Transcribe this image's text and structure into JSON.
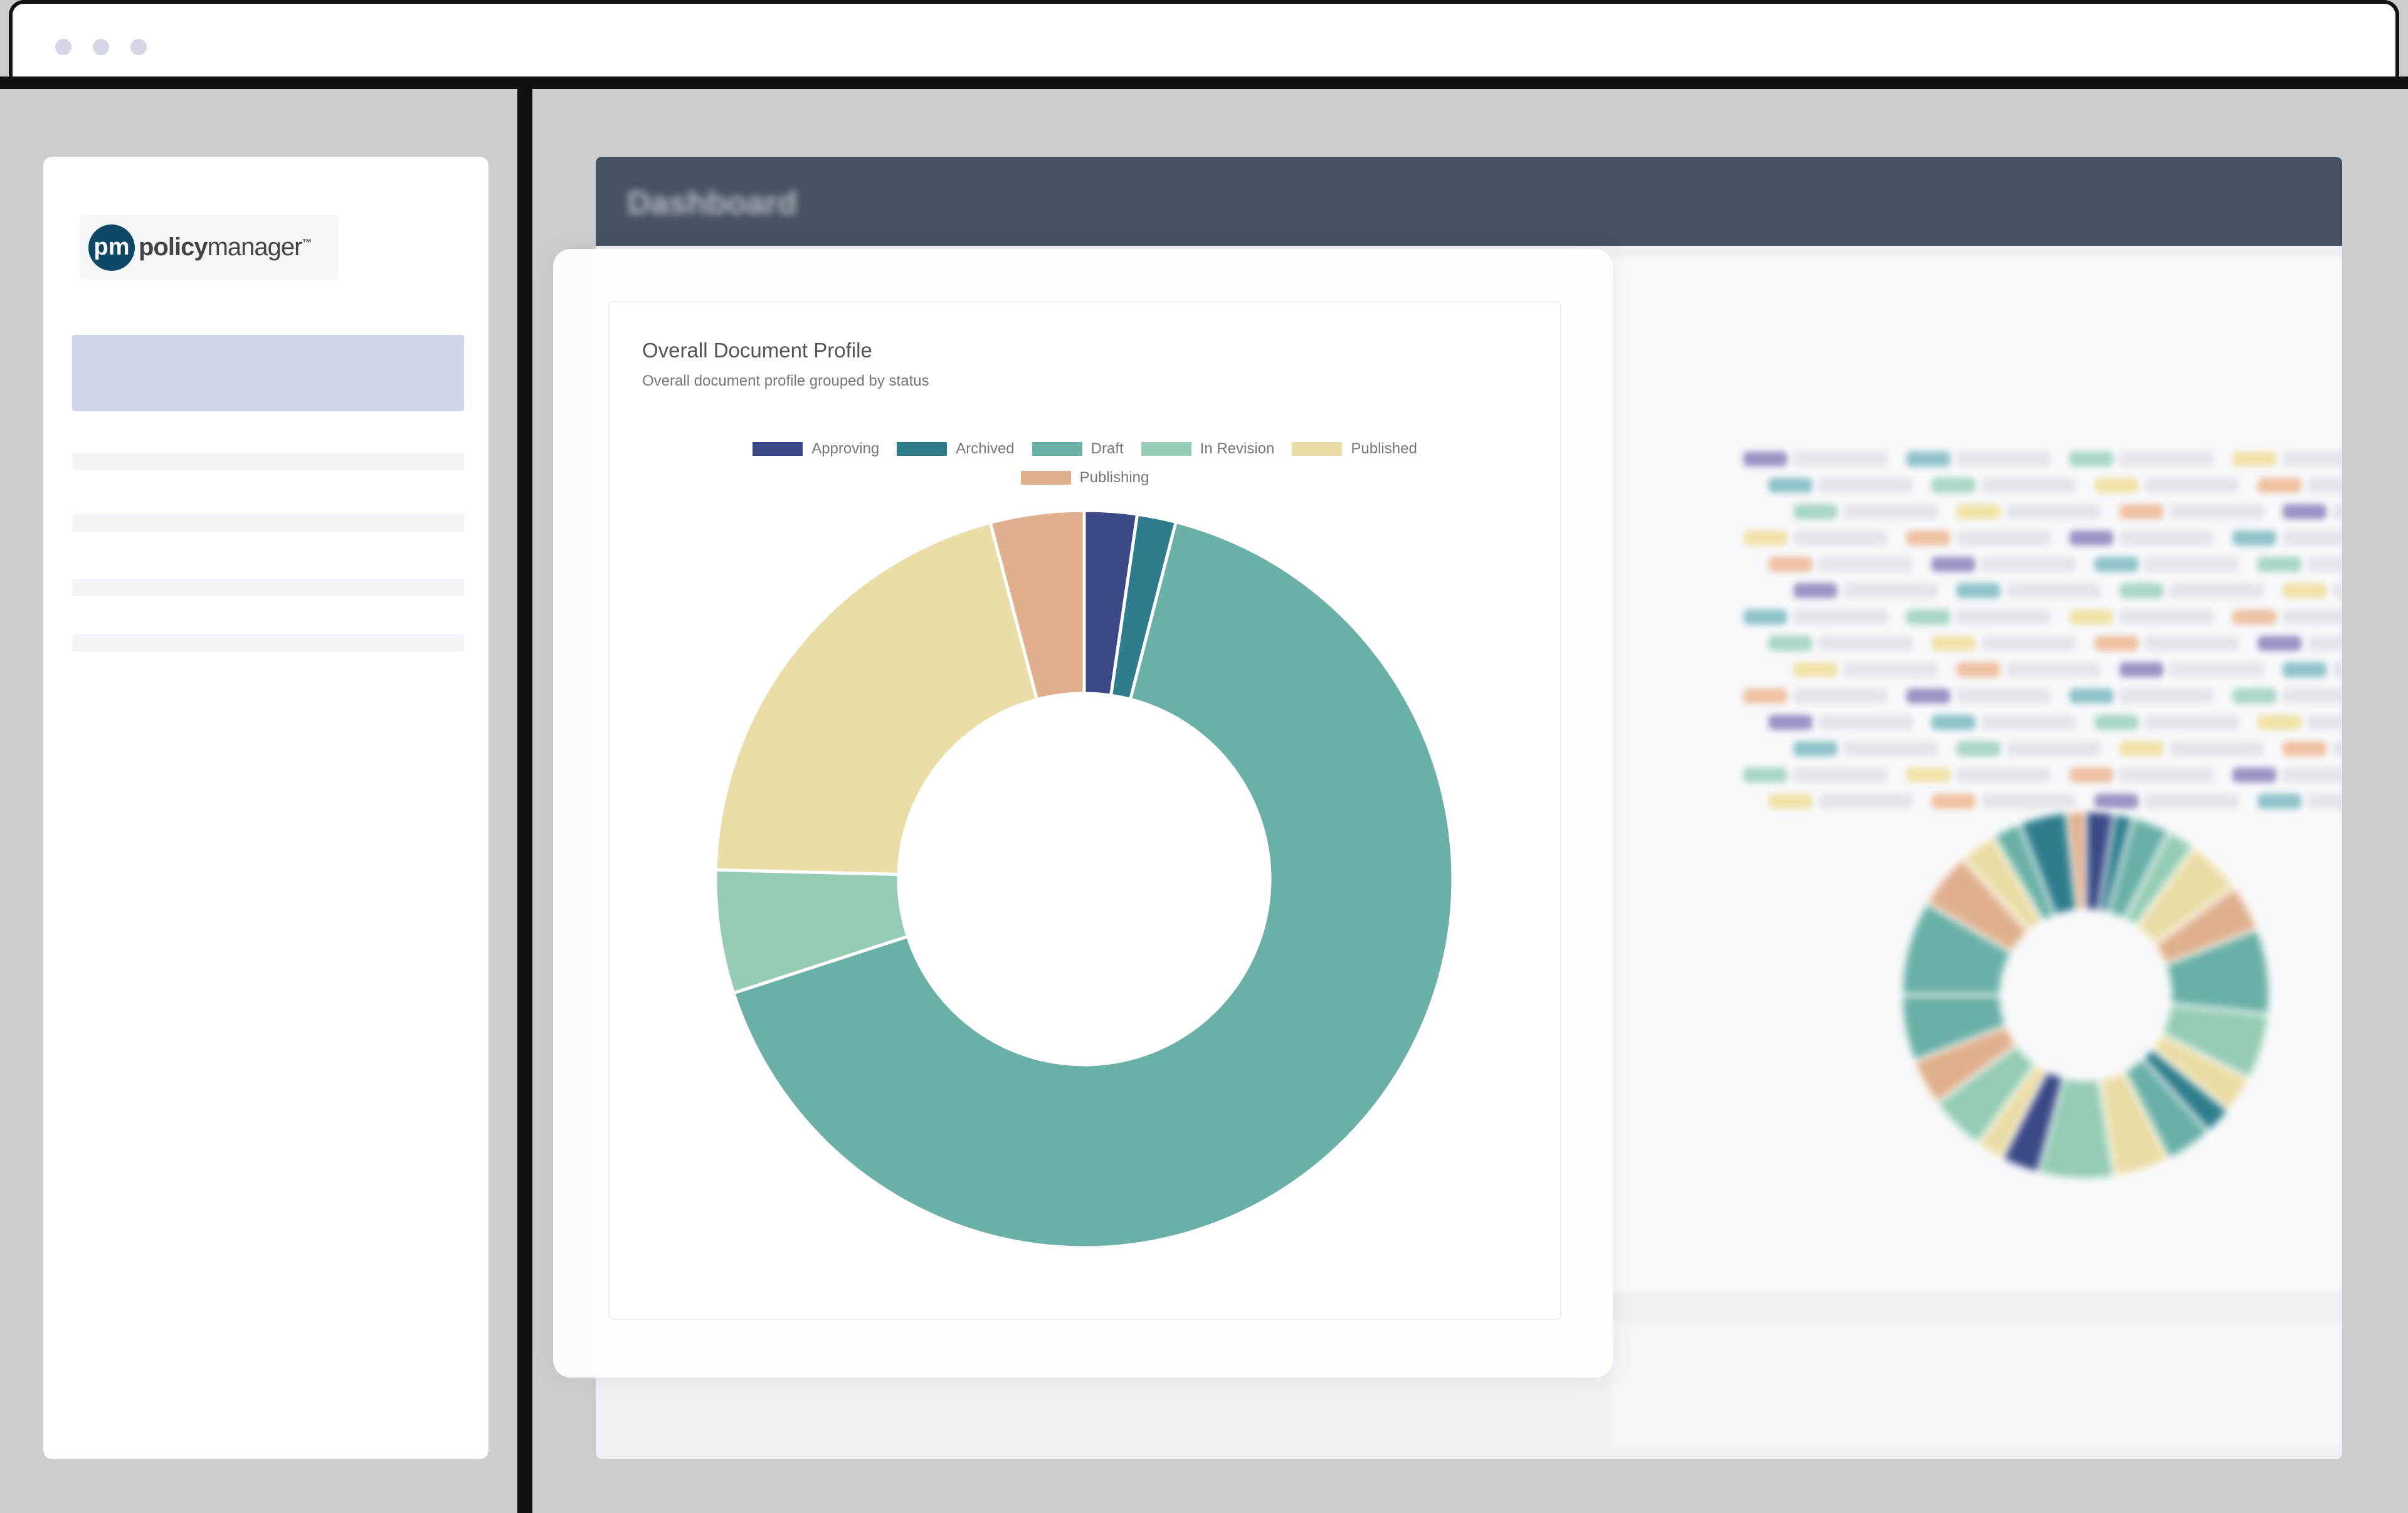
{
  "window": {
    "dots": 3
  },
  "sidebar": {
    "logo": {
      "mark": "pm",
      "text_bold": "policy",
      "text_light": "manager",
      "tm": "™"
    }
  },
  "dashboard": {
    "header_title": "Dashboard"
  },
  "card": {
    "title": "Overall Document Profile",
    "subtitle": "Overall document profile grouped by status"
  },
  "chart_data": {
    "type": "pie",
    "subtype": "doughnut",
    "title": "Overall Document Profile",
    "subtitle": "Overall document profile grouped by status",
    "legend_position": "top",
    "categories": [
      "Approving",
      "Archived",
      "Draft",
      "In Revision",
      "Published",
      "Publishing"
    ],
    "values": [
      2.3,
      1.7,
      66.0,
      5.4,
      20.5,
      4.1
    ],
    "unit": "percent (estimated)",
    "colors": [
      "#3b4a87",
      "#2f7d8c",
      "#6ab0a6",
      "#95ccb3",
      "#ebdda8",
      "#e0b08e"
    ]
  }
}
